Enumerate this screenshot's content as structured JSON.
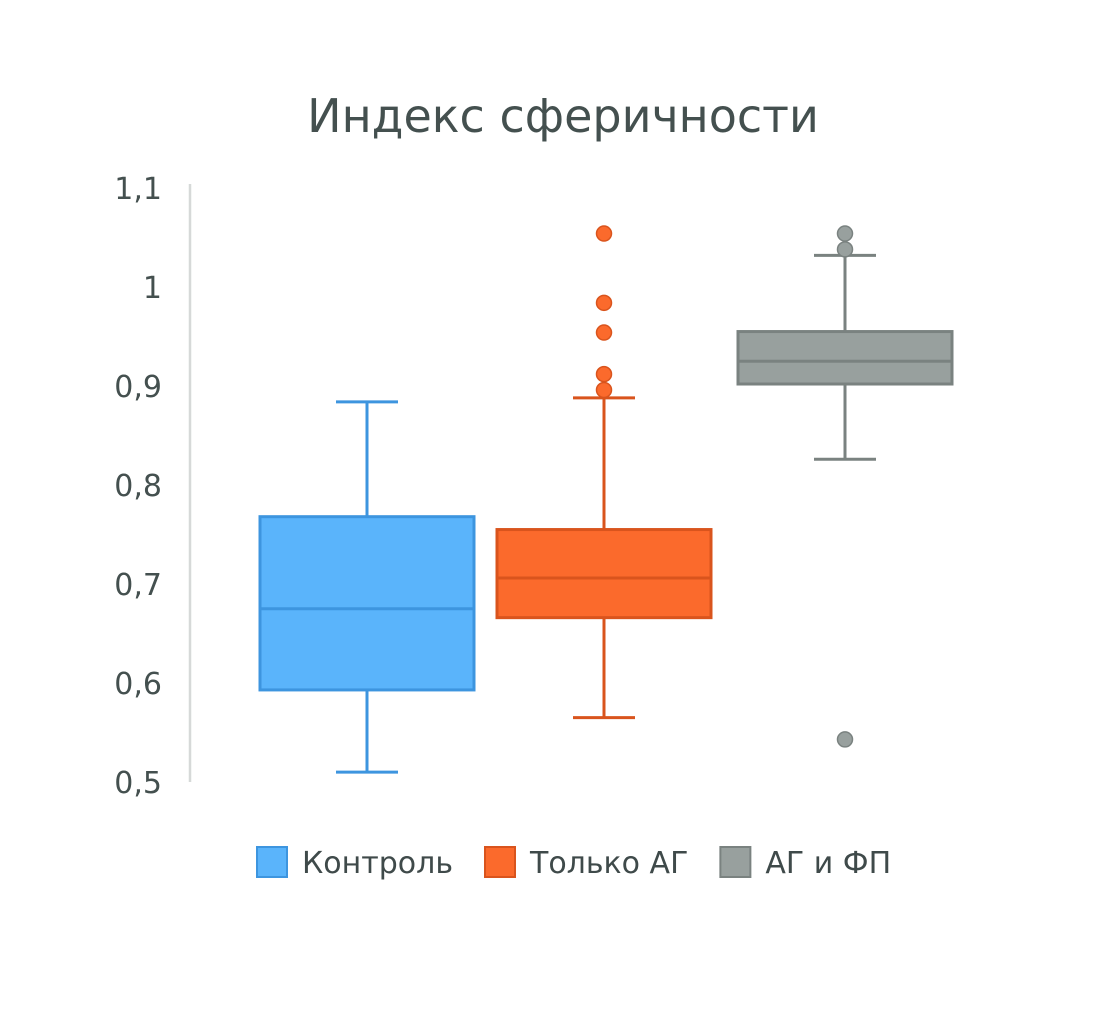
{
  "chart_data": {
    "type": "boxplot",
    "title": "Индекс сферичности",
    "xlabel": "",
    "ylabel": "",
    "ylim": [
      0.5,
      1.1
    ],
    "y_ticks": [
      {
        "value": 0.5,
        "label": "0,5"
      },
      {
        "value": 0.6,
        "label": "0,6"
      },
      {
        "value": 0.7,
        "label": "0,7"
      },
      {
        "value": 0.8,
        "label": "0,8"
      },
      {
        "value": 0.9,
        "label": "0,9"
      },
      {
        "value": 1.0,
        "label": "1"
      },
      {
        "value": 1.1,
        "label": "1,1"
      }
    ],
    "grid": false,
    "legend_position": "bottom",
    "series": [
      {
        "name": "Контроль",
        "color": "#5ab4fb",
        "edge_color": "#3d95df",
        "whisker_low": 0.51,
        "q1": 0.593,
        "median": 0.675,
        "q3": 0.768,
        "whisker_high": 0.884,
        "outliers": []
      },
      {
        "name": "Только АГ",
        "color": "#fb6a2c",
        "edge_color": "#d9541d",
        "whisker_low": 0.565,
        "q1": 0.666,
        "median": 0.706,
        "q3": 0.755,
        "whisker_high": 0.888,
        "outliers": [
          0.896,
          0.912,
          0.954,
          0.984,
          1.054
        ]
      },
      {
        "name": "АГ и ФП",
        "color": "#98a09e",
        "edge_color": "#7a8280",
        "whisker_low": 0.826,
        "q1": 0.902,
        "median": 0.925,
        "q3": 0.955,
        "whisker_high": 1.032,
        "outliers": [
          0.543,
          1.038,
          1.054
        ]
      }
    ]
  }
}
